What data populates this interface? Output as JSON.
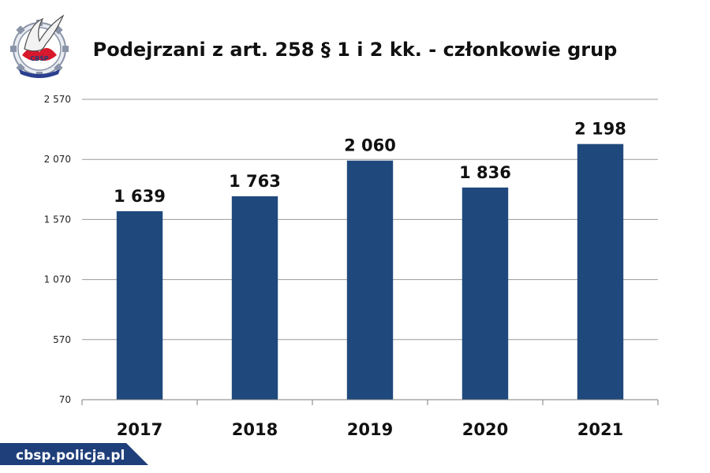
{
  "chart_data": {
    "type": "bar",
    "title": "Podejrzani z art. 258 § 1 i 2 kk. - członkowie grup",
    "categories": [
      "2017",
      "2018",
      "2019",
      "2020",
      "2021"
    ],
    "values": [
      1639,
      1763,
      2060,
      1836,
      2198
    ],
    "value_labels": [
      "1 639",
      "1 763",
      "2 060",
      "1 836",
      "2 198"
    ],
    "yticks": [
      70,
      570,
      1070,
      1570,
      2070,
      2570
    ],
    "ytick_labels": [
      "70",
      "570",
      "1 070",
      "1 570",
      "2 070",
      "2 570"
    ],
    "ylim": [
      70,
      2570
    ],
    "xlabel": "",
    "ylabel": "",
    "grid": true,
    "legend": "none",
    "bar_color": "#1f497d"
  },
  "logo": {
    "icon": "police-eagle-emblem-icon",
    "text": "CBŚP"
  },
  "footer": {
    "site": "cbsp.policja.pl",
    "bg_color": "#1f3f7a"
  }
}
